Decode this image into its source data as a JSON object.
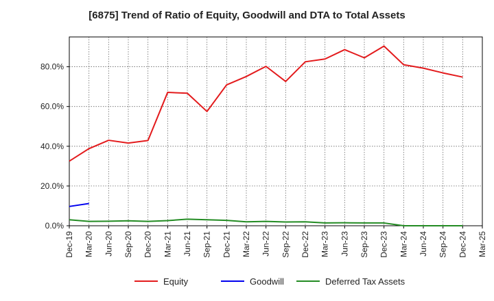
{
  "chart_data": {
    "type": "line",
    "title": "[6875]  Trend of Ratio of Equity, Goodwill and DTA to Total Assets",
    "xlabel": "",
    "ylabel": "",
    "x": [
      "Dec-19",
      "Mar-20",
      "Jun-20",
      "Sep-20",
      "Dec-20",
      "Mar-21",
      "Jun-21",
      "Sep-21",
      "Dec-21",
      "Mar-22",
      "Jun-22",
      "Sep-22",
      "Dec-22",
      "Mar-23",
      "Jun-23",
      "Sep-23",
      "Dec-23",
      "Mar-24",
      "Jun-24",
      "Sep-24",
      "Dec-24",
      "Mar-25"
    ],
    "ylim": [
      0,
      95
    ],
    "yticks": [
      0,
      20,
      40,
      60,
      80
    ],
    "ytick_labels": [
      "0.0%",
      "20.0%",
      "40.0%",
      "60.0%",
      "80.0%"
    ],
    "grid": true,
    "legend_position": "bottom",
    "series": [
      {
        "name": "Equity",
        "color": "#e31a1c",
        "values": [
          32.5,
          38.8,
          43.0,
          41.6,
          42.9,
          67.1,
          66.7,
          57.5,
          70.9,
          75.1,
          80.2,
          72.6,
          82.5,
          83.9,
          88.6,
          84.5,
          90.4,
          81.0,
          79.3,
          76.9,
          74.8,
          null
        ]
      },
      {
        "name": "Goodwill",
        "color": "#0000ee",
        "values": [
          9.7,
          11.2,
          null,
          null,
          null,
          null,
          null,
          null,
          null,
          null,
          null,
          null,
          null,
          null,
          null,
          null,
          null,
          null,
          null,
          null,
          null,
          null
        ]
      },
      {
        "name": "Deferred Tax Assets",
        "color": "#228b22",
        "values": [
          3.0,
          2.2,
          2.3,
          2.5,
          2.2,
          2.6,
          3.3,
          3.0,
          2.7,
          2.0,
          2.2,
          1.9,
          2.0,
          1.4,
          1.5,
          1.4,
          1.4,
          0.0,
          0.0,
          0.0,
          0.0,
          null
        ]
      }
    ]
  }
}
